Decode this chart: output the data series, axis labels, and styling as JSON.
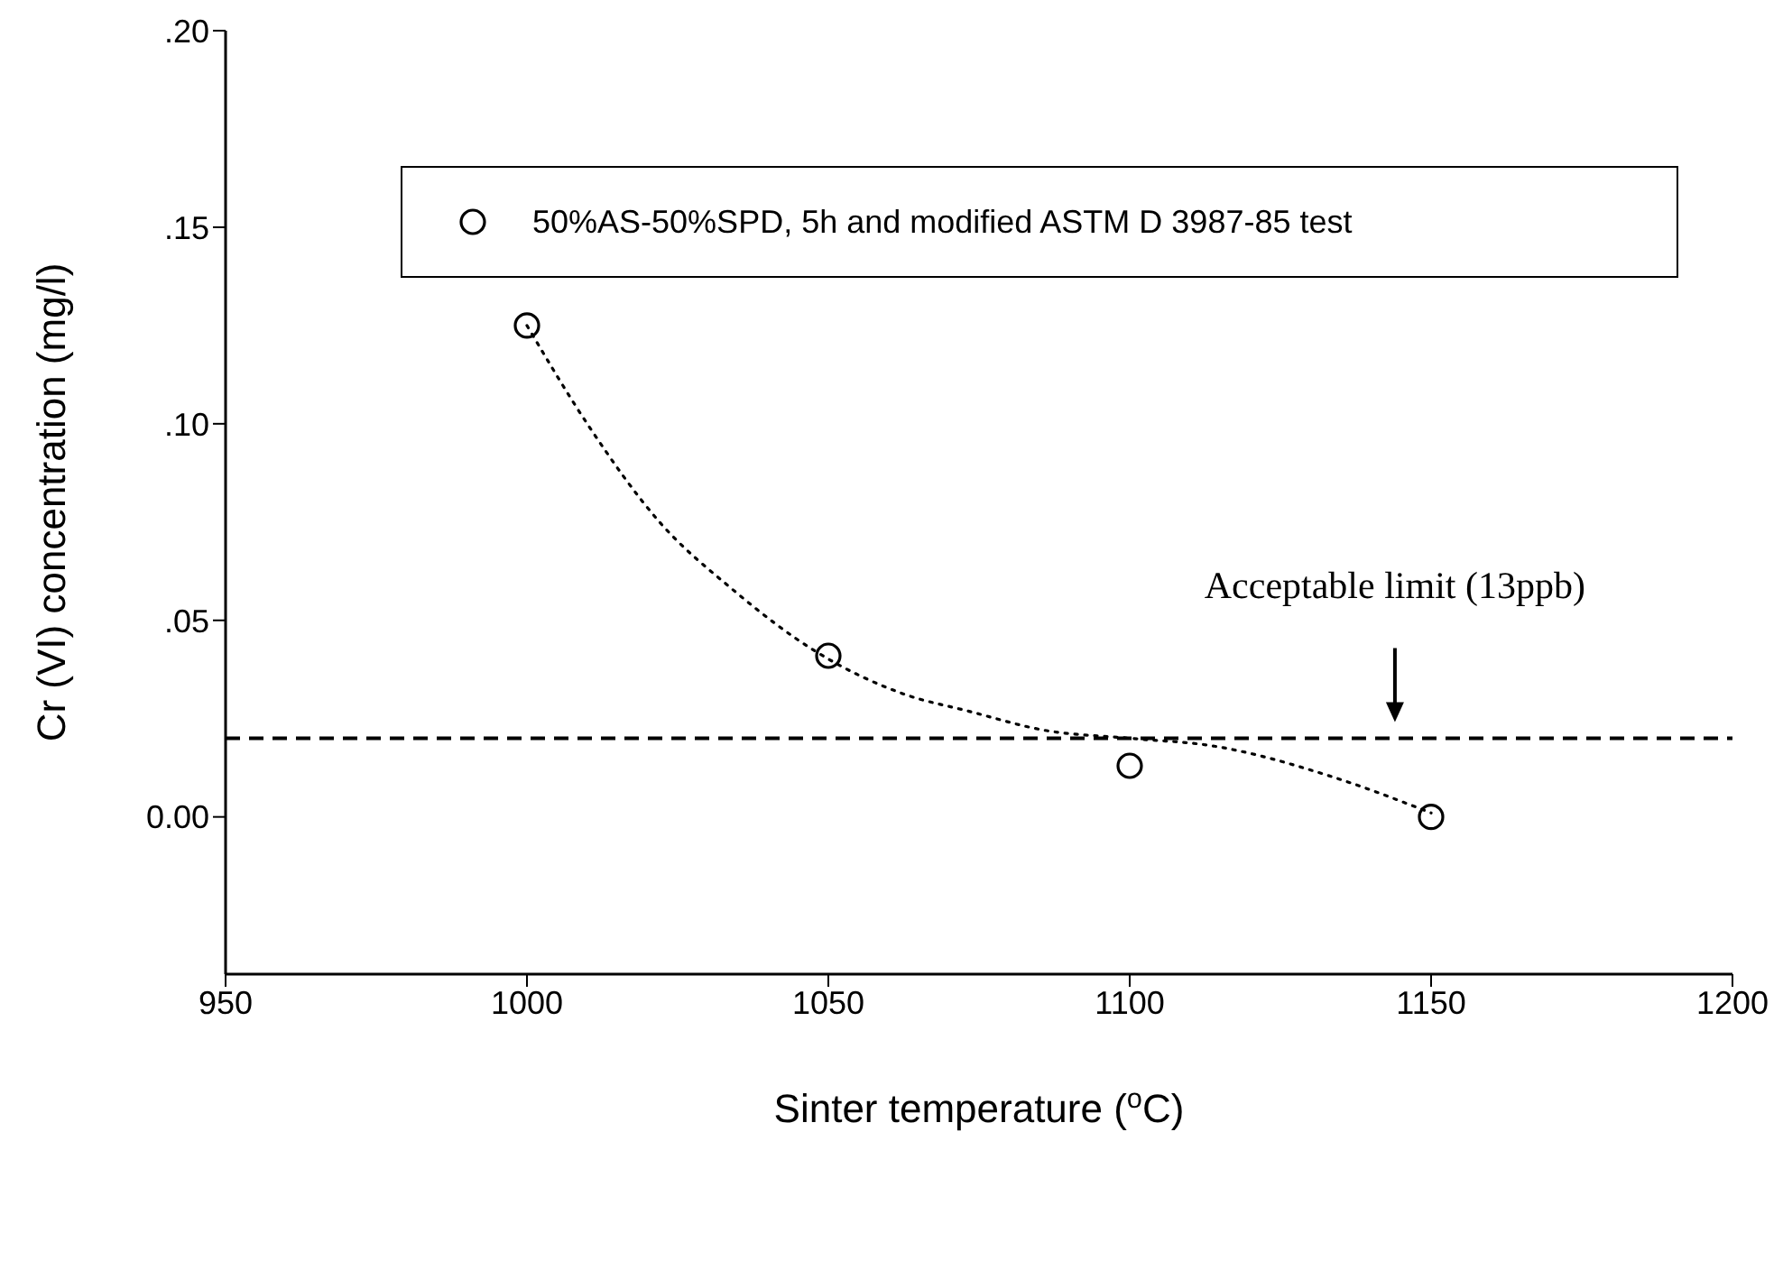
{
  "chart_data": {
    "type": "scatter",
    "xlabel": "Sinter temperature ($^{o}$C)",
    "ylabel": "Cr (VI) concentration (mg/l)",
    "xlim": [
      950,
      1200
    ],
    "xticks": [
      950,
      1000,
      1050,
      1100,
      1150,
      1200
    ],
    "ylim": [
      -0.04,
      0.2
    ],
    "yticks": [
      {
        "value": 0,
        "label": "0.00"
      },
      {
        "value": 0.05,
        "label": ".05"
      },
      {
        "value": 0.1,
        "label": ".10"
      },
      {
        "value": 0.15,
        "label": ".15"
      },
      {
        "value": 0.2,
        "label": ".20"
      }
    ],
    "x": [
      1000,
      1050,
      1100,
      1150
    ],
    "series": [
      {
        "name": "50%AS-50%SPD, 5h and modified ASTM D 3987-85 test",
        "marker": "circle",
        "color": "#000000",
        "values": [
          0.125,
          0.041,
          0.013,
          0.0
        ]
      },
      {
        "type": "line",
        "line_style": "dotted",
        "marker": "none",
        "color": "#000000",
        "x": [
          1000,
          1010,
          1022,
          1034,
          1048,
          1063,
          1073,
          1086,
          1100,
          1114,
          1134,
          1150
        ],
        "values": [
          0.125,
          0.1,
          0.075,
          0.058,
          0.042,
          0.031,
          0.027,
          0.022,
          0.02,
          0.018,
          0.01,
          0.001
        ]
      }
    ],
    "ref_lines": [
      {
        "axis": "y",
        "value": 0.02,
        "color": "#000000",
        "line_style": "dashed"
      }
    ],
    "annotations": [
      "Acceptable limit (13ppb)"
    ],
    "legend": "top",
    "grid": false
  }
}
